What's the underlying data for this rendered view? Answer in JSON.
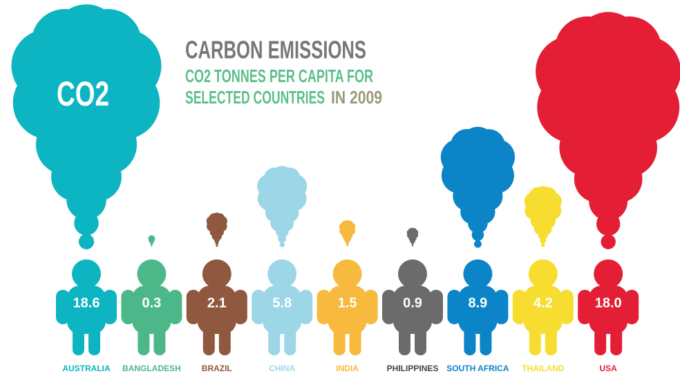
{
  "chart_data": {
    "type": "pictograph",
    "title": "CARBON EMISSIONS",
    "subtitle": [
      "CO2 TONNES PER CAPITA FOR",
      "SELECTED COUNTRIES",
      "IN 2009"
    ],
    "annotation": "CO2",
    "categories": [
      "AUSTRALIA",
      "BANGLADESH",
      "BRAZIL",
      "CHINA",
      "INDIA",
      "PHILIPPINES",
      "SOUTH AFRICA",
      "THAILAND",
      "USA"
    ],
    "values": [
      18.6,
      0.3,
      2.1,
      5.8,
      1.5,
      0.9,
      8.9,
      4.2,
      18.0
    ],
    "value_labels": [
      "18.6",
      "0.3",
      "2.1",
      "5.8",
      "1.5",
      "0.9",
      "8.9",
      "4.2",
      "18.0"
    ],
    "colors": [
      "#0cb5c1",
      "#4cb88a",
      "#8f583f",
      "#9dd6e6",
      "#f7b93e",
      "#6b6b6b",
      "#0b84c8",
      "#f7dd2f",
      "#e31e35"
    ]
  }
}
